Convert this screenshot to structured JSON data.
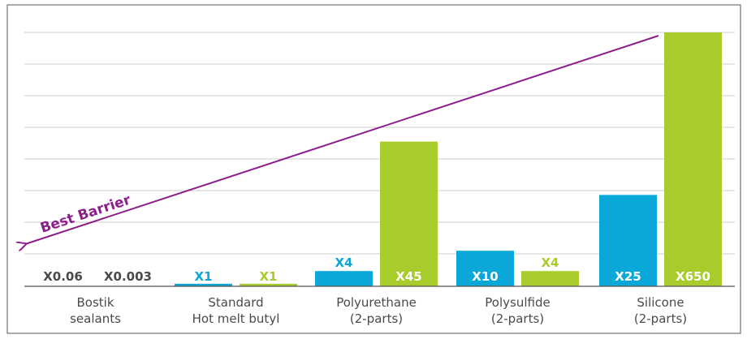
{
  "chart_data": {
    "type": "bar",
    "title": "",
    "xlabel": "",
    "ylabel": "",
    "categories": [
      [
        "Bostik",
        "sealants"
      ],
      [
        "Standard",
        "Hot melt butyl"
      ],
      [
        "Polyurethane",
        "(2-parts)"
      ],
      [
        "Polysulfide",
        "(2-parts)"
      ],
      [
        "Silicone",
        "(2-parts)"
      ]
    ],
    "series": [
      {
        "color": "#0aa8d8",
        "values": [
          0.06,
          1,
          4,
          10,
          25
        ],
        "labels": [
          "X0.06",
          "X1",
          "X4",
          "X10",
          "X25"
        ]
      },
      {
        "color": "#a8cc2c",
        "values": [
          0.003,
          1,
          45,
          4,
          650
        ],
        "labels": [
          "X0.003",
          "X1",
          "X45",
          "X4",
          "X650"
        ]
      }
    ],
    "bar_level_fraction": [
      [
        0,
        0.01,
        0.06,
        0.14,
        0.36
      ],
      [
        0,
        0.01,
        0.57,
        0.06,
        1.0
      ]
    ],
    "grid": true,
    "annotation": {
      "text": "Best Barrier",
      "color": "#8c1f8c"
    },
    "grid_color": "#cccccc",
    "axis_color": "#555555",
    "label_color_dark": "#4a4a4a",
    "label_color_light": "#ffffff"
  }
}
